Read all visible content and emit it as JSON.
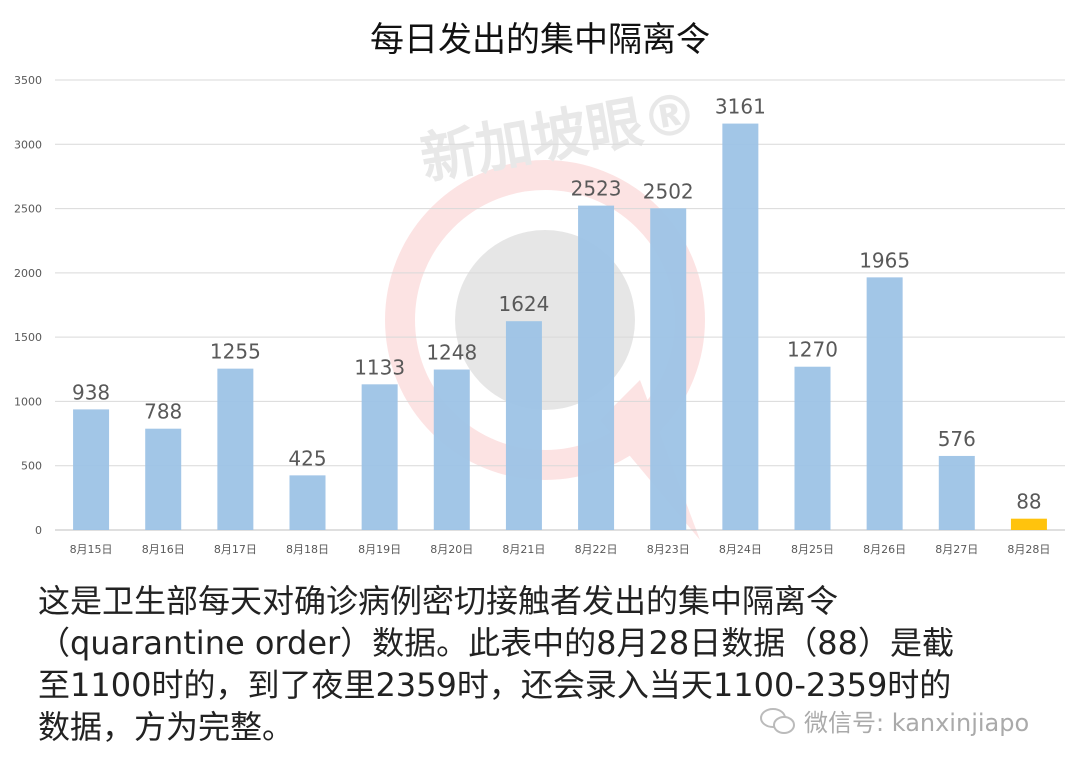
{
  "chart_data": {
    "type": "bar",
    "title": "每日发出的集中隔离令",
    "categories": [
      "8月15日",
      "8月16日",
      "8月17日",
      "8月18日",
      "8月19日",
      "8月20日",
      "8月21日",
      "8月22日",
      "8月23日",
      "8月24日",
      "8月25日",
      "8月26日",
      "8月27日",
      "8月28日"
    ],
    "values": [
      938,
      788,
      1255,
      425,
      1133,
      1248,
      1624,
      2523,
      2502,
      3161,
      1270,
      1965,
      576,
      88
    ],
    "ylim": [
      0,
      3500
    ],
    "yticks": [
      0,
      500,
      1000,
      1500,
      2000,
      2500,
      3000,
      3500
    ],
    "grid": true,
    "colors": {
      "default": "#9DC3E6",
      "highlight": "#FFC000",
      "highlight_index": 13
    }
  },
  "watermark": {
    "text": "新加坡眼",
    "mark": "®"
  },
  "caption": {
    "lines": [
      "这是卫生部每天对确诊病例密切接触者发出的集中隔离令",
      "（quarantine order）数据。此表中的8月28日数据（88）是截",
      "至1100时的，到了夜里2359时，还会录入当天1100-2359时的",
      "数据，方为完整。"
    ]
  },
  "wechat": {
    "label": "微信号: kanxinjiapo",
    "icon": "wechat-icon"
  }
}
